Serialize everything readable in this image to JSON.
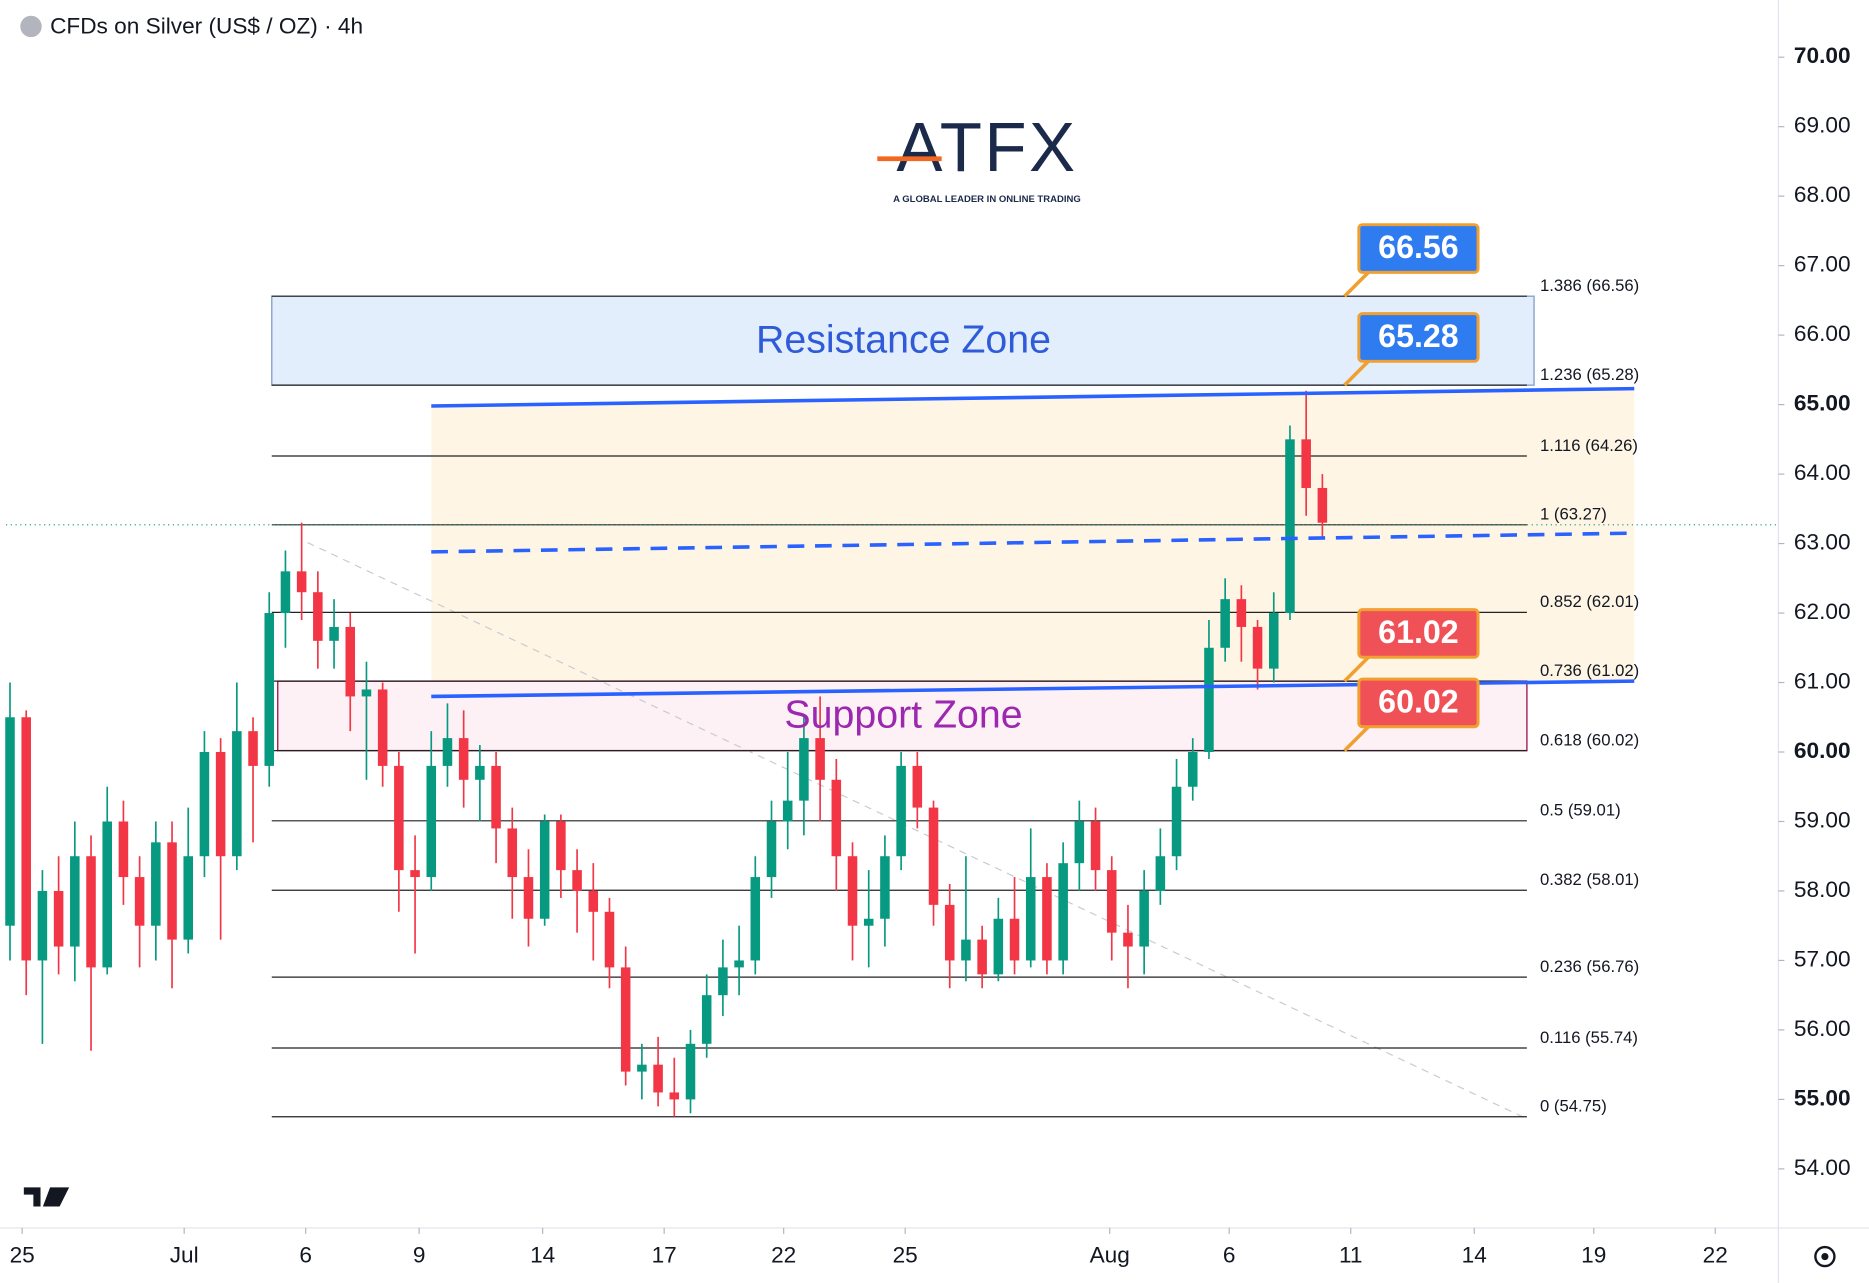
{
  "chart_data": {
    "type": "candlestick",
    "title": "CFDs on Silver (US$ / OZ) · 4h",
    "logo_name": "ATFX",
    "logo_tagline": "A GLOBAL LEADER IN ONLINE TRADING",
    "xlim": [
      -0.4,
      43.3
    ],
    "xticks": [
      {
        "value": 0,
        "label": "25"
      },
      {
        "value": 4,
        "label": "Jul"
      },
      {
        "value": 7,
        "label": "6"
      },
      {
        "value": 9.8,
        "label": "9"
      },
      {
        "value": 12.85,
        "label": "14"
      },
      {
        "value": 15.85,
        "label": "17"
      },
      {
        "value": 18.8,
        "label": "22"
      },
      {
        "value": 21.8,
        "label": "25"
      },
      {
        "value": 26.85,
        "label": "Aug"
      },
      {
        "value": 29.8,
        "label": "6"
      },
      {
        "value": 32.8,
        "label": "11"
      },
      {
        "value": 35.85,
        "label": "14"
      },
      {
        "value": 38.8,
        "label": "19"
      },
      {
        "value": 41.8,
        "label": "22"
      }
    ],
    "ylim": [
      53.15,
      70.82
    ],
    "yticks": [
      {
        "value": 54,
        "label": "54.00"
      },
      {
        "value": 55,
        "label": "55.00"
      },
      {
        "value": 56,
        "label": "56.00"
      },
      {
        "value": 57,
        "label": "57.00"
      },
      {
        "value": 58,
        "label": "58.00"
      },
      {
        "value": 59,
        "label": "59.00"
      },
      {
        "value": 60,
        "label": "60.00"
      },
      {
        "value": 61,
        "label": "61.00"
      },
      {
        "value": 62,
        "label": "62.00"
      },
      {
        "value": 63,
        "label": "63.00"
      },
      {
        "value": 64,
        "label": "64.00"
      },
      {
        "value": 65,
        "label": "65.00"
      },
      {
        "value": 66,
        "label": "66.00"
      },
      {
        "value": 67,
        "label": "67.00"
      },
      {
        "value": 68,
        "label": "68.00"
      },
      {
        "value": 69,
        "label": "69.00"
      },
      {
        "value": 70,
        "label": "70.00"
      }
    ],
    "up_color": "#089981",
    "down_color": "#f23645",
    "candles": {
      "x": [
        -0.3,
        0.1,
        0.5,
        0.9,
        1.3,
        1.7,
        2.1,
        2.5,
        2.9,
        3.3,
        3.7,
        4.1,
        4.5,
        4.9,
        5.3,
        5.7,
        6.1,
        6.5,
        6.9,
        7.3,
        7.7,
        8.1,
        8.5,
        8.9,
        9.3,
        9.7,
        10.1,
        10.5,
        10.9,
        11.3,
        11.7,
        12.1,
        12.5,
        12.9,
        13.3,
        13.7,
        14.1,
        14.5,
        14.9,
        15.3,
        15.7,
        16.1,
        16.5,
        16.9,
        17.3,
        17.7,
        18.1,
        18.5,
        18.9,
        19.3,
        19.7,
        20.1,
        20.5,
        20.9,
        21.3,
        21.7,
        22.1,
        22.5,
        22.9,
        23.3,
        23.7,
        24.1,
        24.5,
        24.9,
        25.3,
        25.7,
        26.1,
        26.5,
        26.9,
        27.3,
        27.7,
        28.1,
        28.5,
        28.9,
        29.3,
        29.7,
        30.1,
        30.5,
        30.9,
        31.3,
        31.7,
        32.1
      ],
      "open": [
        57.5,
        60.5,
        57.0,
        58.0,
        57.2,
        58.5,
        56.9,
        59.0,
        58.2,
        57.5,
        58.7,
        57.3,
        58.5,
        60.0,
        58.5,
        60.3,
        59.8,
        62.0,
        62.6,
        62.3,
        61.6,
        61.8,
        60.8,
        60.9,
        59.8,
        58.3,
        58.2,
        59.8,
        60.2,
        59.6,
        59.8,
        58.9,
        58.2,
        57.6,
        59.0,
        58.3,
        58.0,
        57.7,
        56.9,
        55.4,
        55.5,
        55.1,
        55.0,
        55.8,
        56.5,
        56.9,
        57.0,
        58.2,
        59.0,
        59.3,
        60.2,
        59.6,
        58.5,
        57.5,
        57.6,
        58.5,
        59.8,
        59.2,
        57.8,
        57.0,
        57.3,
        56.8,
        57.6,
        57.0,
        58.2,
        57.0,
        58.4,
        59.0,
        58.3,
        57.4,
        57.2,
        58.0,
        58.5,
        59.5,
        60.0,
        61.5,
        62.2,
        61.8,
        61.2,
        62.0,
        64.5,
        63.8
      ],
      "high": [
        61.0,
        60.6,
        58.3,
        58.5,
        59.0,
        58.8,
        59.5,
        59.3,
        58.5,
        59.0,
        59.0,
        59.2,
        60.3,
        60.2,
        61.0,
        60.5,
        62.3,
        62.9,
        63.3,
        62.6,
        62.2,
        62.0,
        61.3,
        61.0,
        60.0,
        58.8,
        60.3,
        60.7,
        60.6,
        60.1,
        60.0,
        59.2,
        58.6,
        59.1,
        59.1,
        58.6,
        58.4,
        57.9,
        57.2,
        55.8,
        55.9,
        55.6,
        56.0,
        56.8,
        57.3,
        57.5,
        58.5,
        59.3,
        60.0,
        60.5,
        60.8,
        59.9,
        58.7,
        58.3,
        58.8,
        60.0,
        60.0,
        59.3,
        58.1,
        58.5,
        57.5,
        57.9,
        58.2,
        58.9,
        58.4,
        58.7,
        59.3,
        59.2,
        58.5,
        57.8,
        58.3,
        58.9,
        59.9,
        60.2,
        61.9,
        62.5,
        62.4,
        61.9,
        62.3,
        64.7,
        65.2,
        64.0
      ],
      "low": [
        57.0,
        56.5,
        55.8,
        56.8,
        56.7,
        55.7,
        56.8,
        57.8,
        56.9,
        57.0,
        56.6,
        57.1,
        58.2,
        57.3,
        58.3,
        58.7,
        59.5,
        61.5,
        61.9,
        61.2,
        61.2,
        60.3,
        59.6,
        59.5,
        57.7,
        57.1,
        58.0,
        59.5,
        59.2,
        59.0,
        58.4,
        57.6,
        57.2,
        57.5,
        57.9,
        57.4,
        57.0,
        56.6,
        55.2,
        55.0,
        54.9,
        54.75,
        54.8,
        55.6,
        56.2,
        56.5,
        56.8,
        57.9,
        58.6,
        58.8,
        59.0,
        58.0,
        57.0,
        56.9,
        57.2,
        58.3,
        58.9,
        57.5,
        56.6,
        56.7,
        56.6,
        56.7,
        56.8,
        56.9,
        56.8,
        56.8,
        58.0,
        58.0,
        57.0,
        56.6,
        56.8,
        57.8,
        58.3,
        59.3,
        59.9,
        61.3,
        61.3,
        60.9,
        61.0,
        61.9,
        63.4,
        63.1
      ],
      "close": [
        60.5,
        57.0,
        58.0,
        57.2,
        58.5,
        56.9,
        59.0,
        58.2,
        57.5,
        58.7,
        57.3,
        58.5,
        60.0,
        58.5,
        60.3,
        59.8,
        62.0,
        62.6,
        62.3,
        61.6,
        61.8,
        60.8,
        60.9,
        59.8,
        58.3,
        58.2,
        59.8,
        60.2,
        59.6,
        59.8,
        58.9,
        58.2,
        57.6,
        59.0,
        58.3,
        58.0,
        57.7,
        56.9,
        55.4,
        55.5,
        55.1,
        55.0,
        55.8,
        56.5,
        56.9,
        57.0,
        58.2,
        59.0,
        59.3,
        60.2,
        59.6,
        58.5,
        57.5,
        57.6,
        58.5,
        59.8,
        59.2,
        57.8,
        57.0,
        57.3,
        56.8,
        57.6,
        57.0,
        58.2,
        57.0,
        58.4,
        59.0,
        58.3,
        57.4,
        57.2,
        58.0,
        58.5,
        59.5,
        60.0,
        61.5,
        62.2,
        61.8,
        61.2,
        62.0,
        64.5,
        63.8,
        63.3
      ]
    },
    "fib_levels": [
      {
        "value": 66.56,
        "label": "1.386 (66.56)"
      },
      {
        "value": 65.28,
        "label": "1.236 (65.28)"
      },
      {
        "value": 64.26,
        "label": "1.116 (64.26)"
      },
      {
        "value": 63.27,
        "label": "1 (63.27)"
      },
      {
        "value": 62.01,
        "label": "0.852 (62.01)"
      },
      {
        "value": 61.02,
        "label": "0.736 (61.02)"
      },
      {
        "value": 60.02,
        "label": "0.618 (60.02)"
      },
      {
        "value": 59.01,
        "label": "0.5 (59.01)"
      },
      {
        "value": 58.01,
        "label": "0.382 (58.01)"
      },
      {
        "value": 56.76,
        "label": "0.236 (56.76)"
      },
      {
        "value": 55.74,
        "label": "0.116 (55.74)"
      },
      {
        "value": 54.75,
        "label": "0 (54.75)"
      }
    ],
    "zones": [
      {
        "label": "Resistance Zone",
        "range": [
          65.28,
          66.56
        ],
        "color": "#2f5bd8"
      },
      {
        "label": "Support Zone",
        "range": [
          60.02,
          61.02
        ],
        "color": "#9c27b0"
      }
    ],
    "callouts": [
      {
        "value": 66.56,
        "color": "#2f7bf0"
      },
      {
        "value": 65.28,
        "color": "#2f7bf0"
      },
      {
        "value": 61.02,
        "color": "#f05157"
      },
      {
        "value": 60.02,
        "color": "#f05157"
      }
    ],
    "trendlines": [
      {
        "x": [
          10.1,
          39.8
        ],
        "y": [
          64.98,
          65.23
        ],
        "dashed": false
      },
      {
        "x": [
          10.1,
          39.8
        ],
        "y": [
          62.88,
          63.15
        ],
        "dashed": true
      },
      {
        "x": [
          10.1,
          39.8
        ],
        "y": [
          60.8,
          61.02
        ],
        "dashed": false
      }
    ]
  }
}
